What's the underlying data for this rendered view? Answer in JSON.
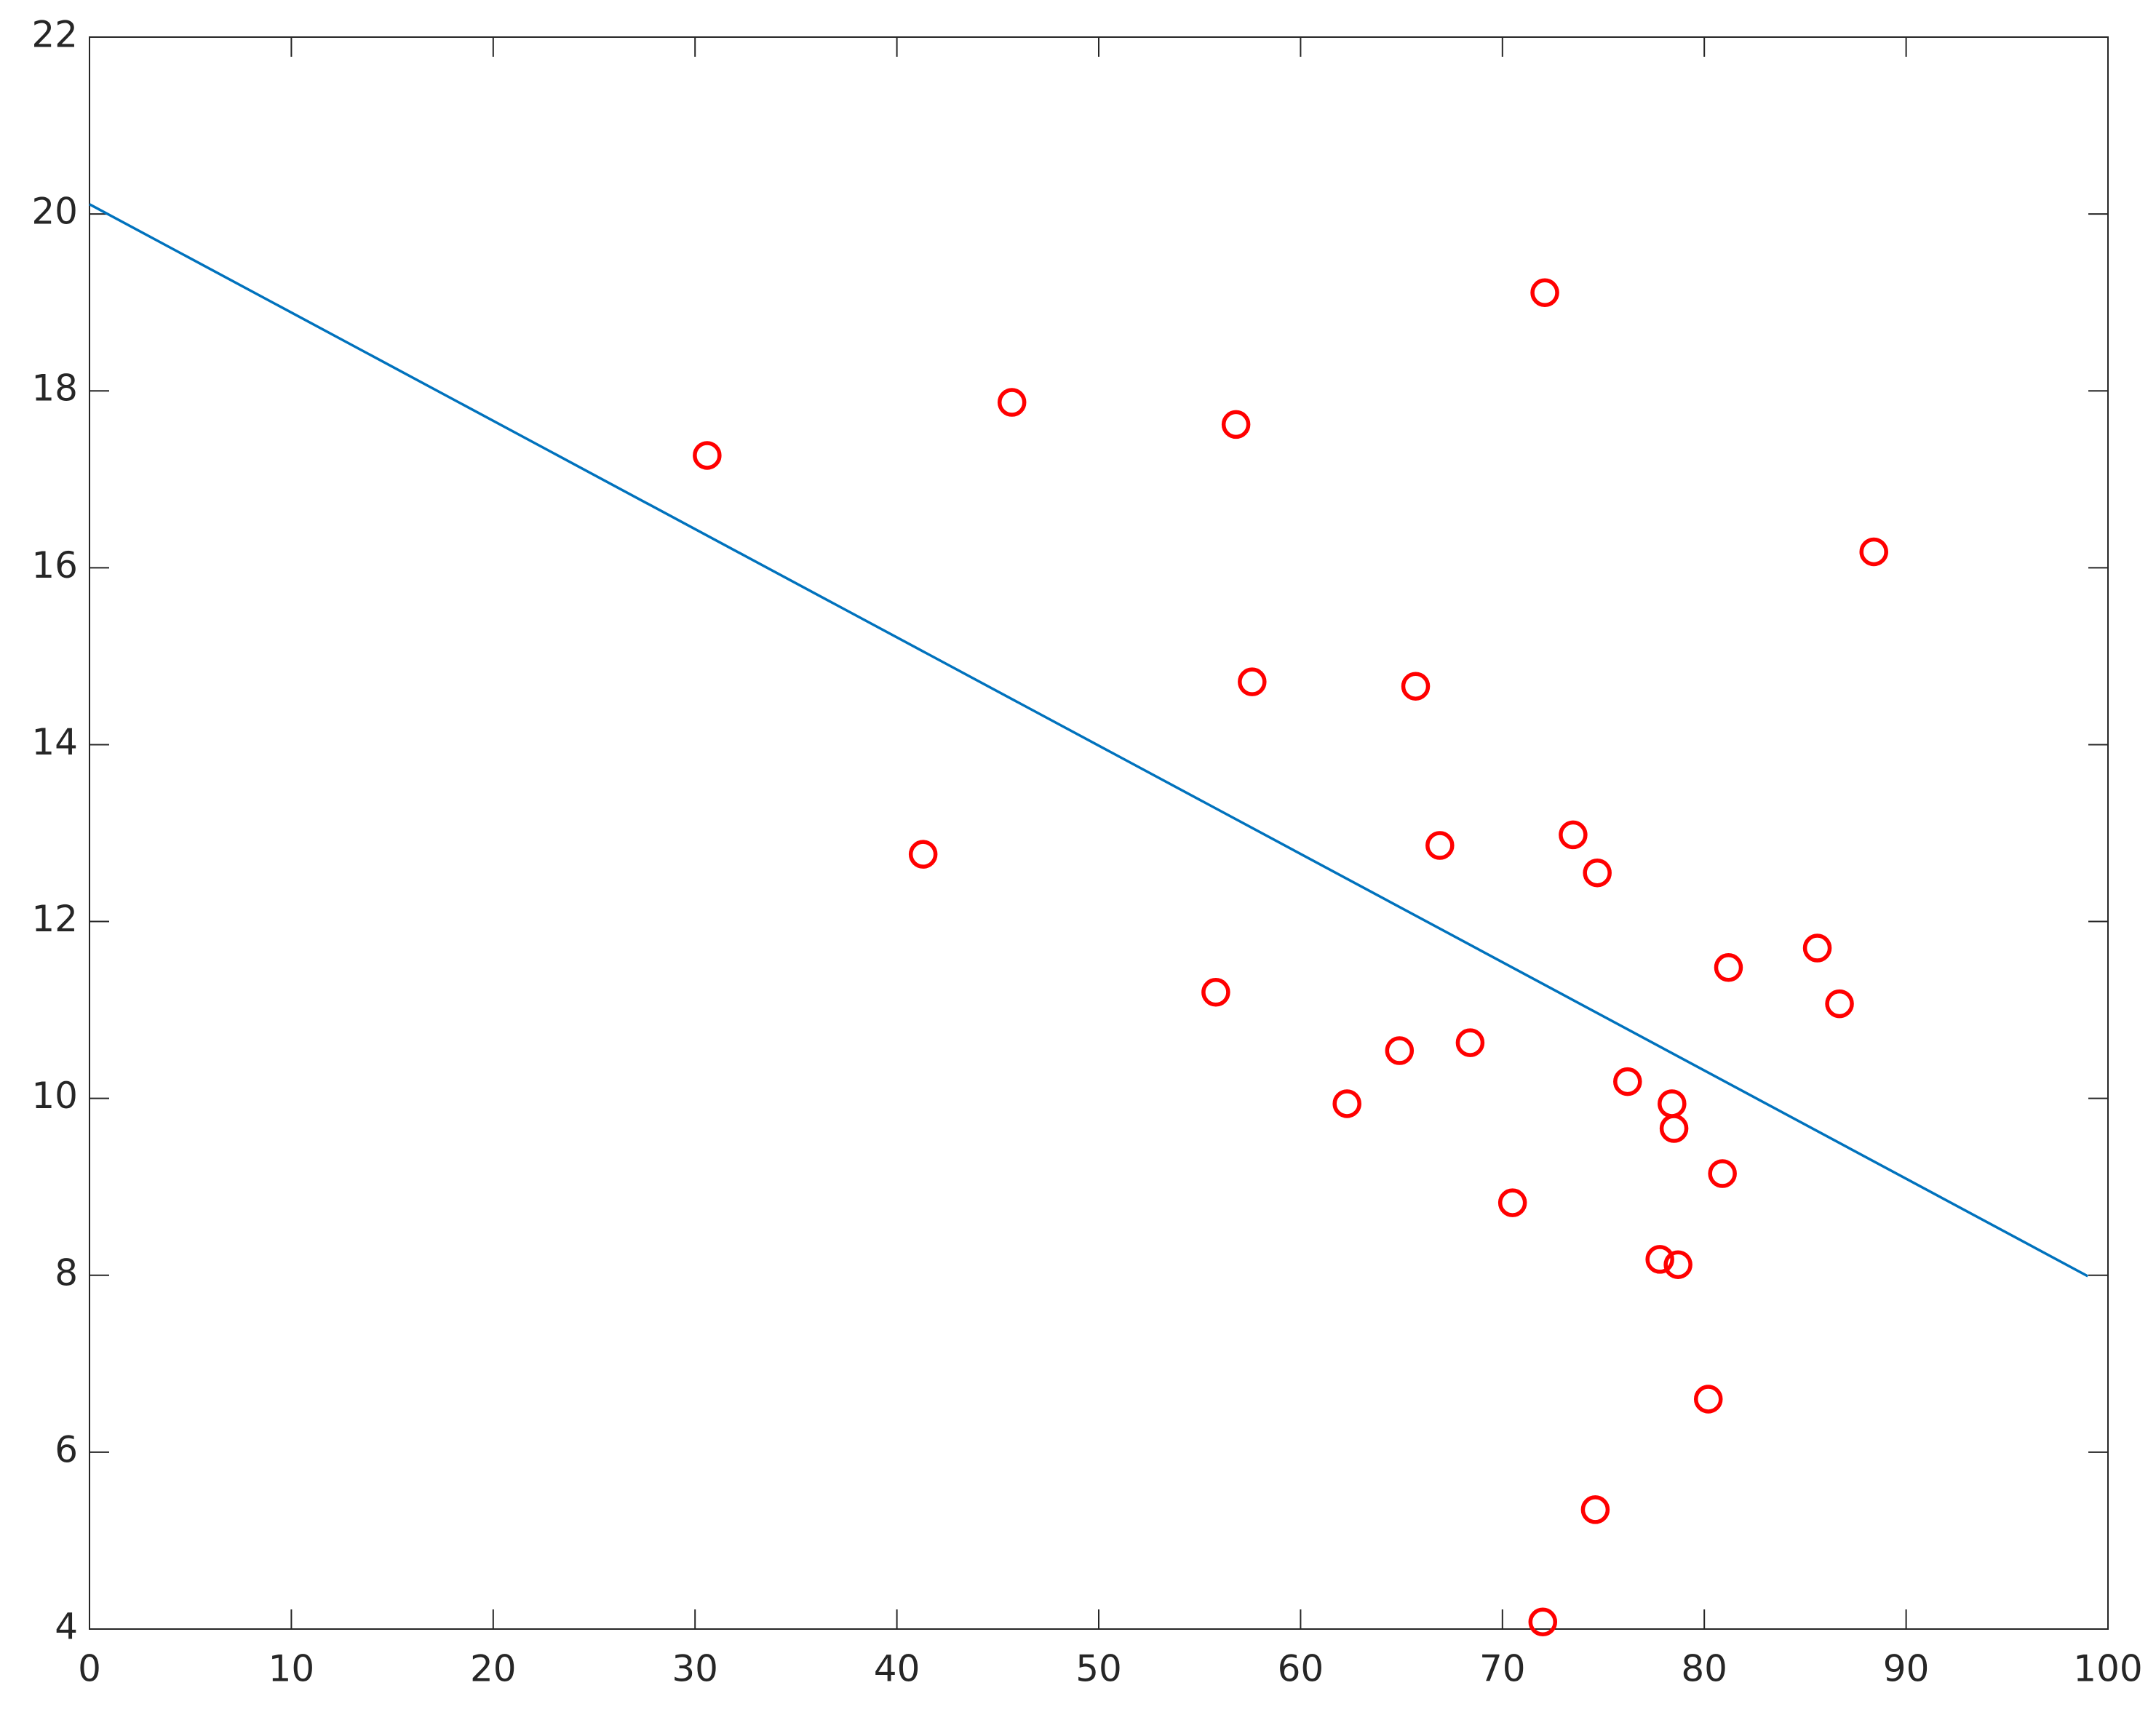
{
  "chart_data": {
    "type": "scatter",
    "series": [
      {
        "color": "#ff0000",
        "x": [
          30.6,
          45.7,
          41.3,
          56.8,
          57.6,
          55.8,
          65.7,
          72.1,
          66.9,
          73.5,
          74.7,
          62.3,
          64.9,
          68.4,
          70.5,
          76.2,
          78.4,
          78.5,
          80.9,
          81.2,
          85.6,
          86.7,
          88.4,
          77.8,
          78.7,
          80.2,
          74.6,
          72.0
        ],
        "values": [
          17.27,
          17.87,
          12.76,
          17.62,
          14.71,
          11.2,
          14.66,
          19.11,
          12.86,
          12.98,
          12.55,
          9.94,
          10.54,
          10.63,
          8.82,
          10.19,
          9.94,
          9.66,
          9.15,
          11.48,
          11.7,
          11.07,
          16.18,
          8.18,
          8.12,
          6.6,
          5.35,
          4.08
        ]
      }
    ],
    "line": {
      "color": "#0072bd",
      "x": [
        0,
        99
      ],
      "values": [
        20.11,
        7.99
      ]
    },
    "xlim": [
      0,
      100
    ],
    "xticks": [
      0,
      10,
      20,
      30,
      40,
      50,
      60,
      70,
      80,
      90,
      100
    ],
    "ylim": [
      4,
      22
    ],
    "yticks": [
      4,
      6,
      8,
      10,
      12,
      14,
      16,
      18,
      20,
      22
    ]
  }
}
